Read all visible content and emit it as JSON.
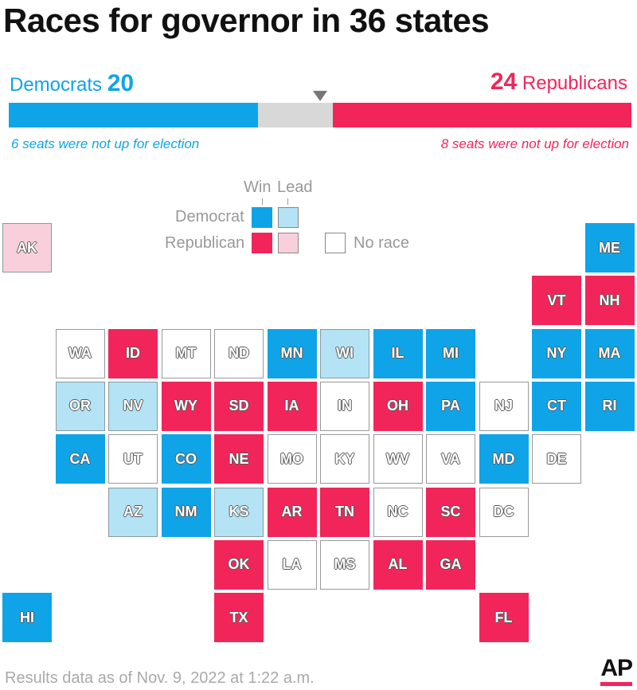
{
  "title": "Races for governor in 36 states",
  "summary": {
    "dem_label": "Democrats",
    "dem_count": "20",
    "rep_count": "24",
    "rep_label": "Republicans",
    "dem_note": "6 seats were not up for election",
    "rep_note": "8 seats were not up for election",
    "bar_segments": [
      {
        "party": "Democrat",
        "seats": 20,
        "color": "#0fa4e8"
      },
      {
        "party": "Undecided",
        "seats": 6,
        "color": "#d8d8d8"
      },
      {
        "party": "Republican",
        "seats": 24,
        "color": "#f2255a"
      }
    ],
    "majority_marker_seats": 25
  },
  "legend": {
    "win": "Win",
    "lead": "Lead",
    "democrat": "Democrat",
    "republican": "Republican",
    "no_race": "No race"
  },
  "colors": {
    "dem_win": "#0fa4e8",
    "dem_lead": "#b3e3f5",
    "rep_win": "#f2255a",
    "rep_lead": "#f9cfdb",
    "no_race": "#ffffff"
  },
  "states": [
    {
      "abbr": "AK",
      "status": "rl"
    },
    {
      "abbr": "ME",
      "status": "dw"
    },
    {
      "abbr": "VT",
      "status": "rw"
    },
    {
      "abbr": "NH",
      "status": "rw"
    },
    {
      "abbr": "WA",
      "status": "nr"
    },
    {
      "abbr": "ID",
      "status": "rw"
    },
    {
      "abbr": "MT",
      "status": "nr"
    },
    {
      "abbr": "ND",
      "status": "nr"
    },
    {
      "abbr": "MN",
      "status": "dw"
    },
    {
      "abbr": "WI",
      "status": "dl"
    },
    {
      "abbr": "IL",
      "status": "dw"
    },
    {
      "abbr": "MI",
      "status": "dw"
    },
    {
      "abbr": "NY",
      "status": "dw"
    },
    {
      "abbr": "MA",
      "status": "dw"
    },
    {
      "abbr": "OR",
      "status": "dl"
    },
    {
      "abbr": "NV",
      "status": "dl"
    },
    {
      "abbr": "WY",
      "status": "rw"
    },
    {
      "abbr": "SD",
      "status": "rw"
    },
    {
      "abbr": "IA",
      "status": "rw"
    },
    {
      "abbr": "IN",
      "status": "nr"
    },
    {
      "abbr": "OH",
      "status": "rw"
    },
    {
      "abbr": "PA",
      "status": "dw"
    },
    {
      "abbr": "NJ",
      "status": "nr"
    },
    {
      "abbr": "CT",
      "status": "dw"
    },
    {
      "abbr": "RI",
      "status": "dw"
    },
    {
      "abbr": "CA",
      "status": "dw"
    },
    {
      "abbr": "UT",
      "status": "nr"
    },
    {
      "abbr": "CO",
      "status": "dw"
    },
    {
      "abbr": "NE",
      "status": "rw"
    },
    {
      "abbr": "MO",
      "status": "nr"
    },
    {
      "abbr": "KY",
      "status": "nr"
    },
    {
      "abbr": "WV",
      "status": "nr"
    },
    {
      "abbr": "VA",
      "status": "nr"
    },
    {
      "abbr": "MD",
      "status": "dw"
    },
    {
      "abbr": "DE",
      "status": "nr"
    },
    {
      "abbr": "AZ",
      "status": "dl"
    },
    {
      "abbr": "NM",
      "status": "dw"
    },
    {
      "abbr": "KS",
      "status": "dl"
    },
    {
      "abbr": "AR",
      "status": "rw"
    },
    {
      "abbr": "TN",
      "status": "rw"
    },
    {
      "abbr": "NC",
      "status": "nr"
    },
    {
      "abbr": "SC",
      "status": "rw"
    },
    {
      "abbr": "DC",
      "status": "nr"
    },
    {
      "abbr": "OK",
      "status": "rw"
    },
    {
      "abbr": "LA",
      "status": "nr"
    },
    {
      "abbr": "MS",
      "status": "nr"
    },
    {
      "abbr": "AL",
      "status": "rw"
    },
    {
      "abbr": "GA",
      "status": "rw"
    },
    {
      "abbr": "HI",
      "status": "dw"
    },
    {
      "abbr": "TX",
      "status": "rw"
    },
    {
      "abbr": "FL",
      "status": "rw"
    }
  ],
  "footer": "Results data as of Nov. 9, 2022 at 1:22 a.m.",
  "logo": "AP"
}
